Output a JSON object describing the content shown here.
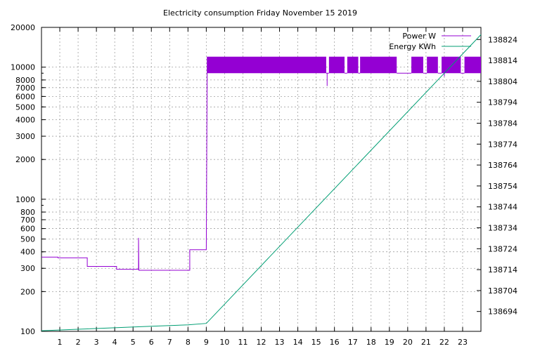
{
  "chart_data": {
    "type": "line",
    "title": "Electricity consumption Friday November 15 2019",
    "grid": true,
    "legend_position": "top-right",
    "x": {
      "label": "",
      "range": [
        0,
        24
      ],
      "ticks": [
        "1",
        "2",
        "3",
        "4",
        "5",
        "6",
        "7",
        "8",
        "9",
        "10",
        "11",
        "12",
        "13",
        "14",
        "15",
        "16",
        "17",
        "18",
        "19",
        "20",
        "21",
        "22",
        "23"
      ]
    },
    "y_left": {
      "label": "",
      "scale": "log",
      "range": [
        100,
        20000
      ],
      "ticks": [
        {
          "value": 100,
          "label": "100"
        },
        {
          "value": 200,
          "label": "200"
        },
        {
          "value": 300,
          "label": "300"
        },
        {
          "value": 400,
          "label": "400"
        },
        {
          "value": 500,
          "label": "500"
        },
        {
          "value": 600,
          "label": "600"
        },
        {
          "value": 700,
          "label": "700"
        },
        {
          "value": 800,
          "label": "800"
        },
        {
          "value": 1000,
          "label": "1000"
        },
        {
          "value": 2000,
          "label": "2000"
        },
        {
          "value": 3000,
          "label": "3000"
        },
        {
          "value": 4000,
          "label": "4000"
        },
        {
          "value": 5000,
          "label": "5000"
        },
        {
          "value": 6000,
          "label": "6000"
        },
        {
          "value": 7000,
          "label": "7000"
        },
        {
          "value": 8000,
          "label": "8000"
        },
        {
          "value": 10000,
          "label": "10000"
        },
        {
          "value": 20000,
          "label": "20000"
        }
      ]
    },
    "y_right": {
      "label": "",
      "scale": "linear",
      "range": [
        138684.5,
        138829.8
      ],
      "ticks": [
        {
          "value": 138694,
          "label": "138694"
        },
        {
          "value": 138704,
          "label": "138704"
        },
        {
          "value": 138714,
          "label": "138714"
        },
        {
          "value": 138724,
          "label": "138724"
        },
        {
          "value": 138734,
          "label": "138734"
        },
        {
          "value": 138744,
          "label": "138744"
        },
        {
          "value": 138754,
          "label": "138754"
        },
        {
          "value": 138764,
          "label": "138764"
        },
        {
          "value": 138774,
          "label": "138774"
        },
        {
          "value": 138784,
          "label": "138784"
        },
        {
          "value": 138794,
          "label": "138794"
        },
        {
          "value": 138804,
          "label": "138804"
        },
        {
          "value": 138814,
          "label": "138814"
        },
        {
          "value": 138824,
          "label": "138824"
        }
      ]
    },
    "series": [
      {
        "name": "Power W",
        "axis": "left",
        "color": "#9400d3",
        "points": [
          [
            0,
            365
          ],
          [
            0.9,
            365
          ],
          [
            0.9,
            360
          ],
          [
            2.5,
            360
          ],
          [
            2.5,
            310
          ],
          [
            4.1,
            310
          ],
          [
            4.1,
            295
          ],
          [
            5.3,
            295
          ],
          [
            5.3,
            510
          ],
          [
            5.32,
            290
          ],
          [
            8.1,
            290
          ],
          [
            8.1,
            415
          ],
          [
            9.0,
            415
          ],
          [
            9.05,
            12000
          ],
          [
            9.3,
            9000
          ],
          [
            9.6,
            12000
          ],
          [
            10.5,
            9000
          ],
          [
            11.5,
            12000
          ],
          [
            12.5,
            9000
          ],
          [
            13.5,
            12000
          ],
          [
            14.5,
            9000
          ],
          [
            15.5,
            12000
          ],
          [
            15.6,
            7200
          ],
          [
            15.7,
            9000
          ],
          [
            16.5,
            12000
          ],
          [
            17.5,
            9000
          ],
          [
            18.5,
            12000
          ],
          [
            19.3,
            9000
          ],
          [
            20.0,
            8800
          ],
          [
            20.5,
            12000
          ],
          [
            21.0,
            9000
          ],
          [
            21.8,
            12000
          ],
          [
            22.0,
            8500
          ],
          [
            22.5,
            12000
          ],
          [
            23.0,
            9000
          ],
          [
            24.0,
            12000
          ]
        ],
        "band": {
          "from_x": 9.05,
          "to_x": 24.0,
          "low": 9000,
          "high": 12000,
          "gaps": [
            [
              15.55,
              15.7
            ],
            [
              16.55,
              16.7
            ],
            [
              17.3,
              17.4
            ],
            [
              19.4,
              20.2
            ],
            [
              20.85,
              21.05
            ],
            [
              21.65,
              21.85
            ],
            [
              22.9,
              23.1
            ]
          ]
        }
      },
      {
        "name": "Energy KWh",
        "axis": "right",
        "color": "#009e73",
        "points": [
          [
            0,
            138684.8
          ],
          [
            2,
            138685.5
          ],
          [
            4,
            138686.2
          ],
          [
            6,
            138686.9
          ],
          [
            8,
            138687.6
          ],
          [
            9.0,
            138688.3
          ],
          [
            24.0,
            138826.3
          ]
        ]
      }
    ]
  }
}
